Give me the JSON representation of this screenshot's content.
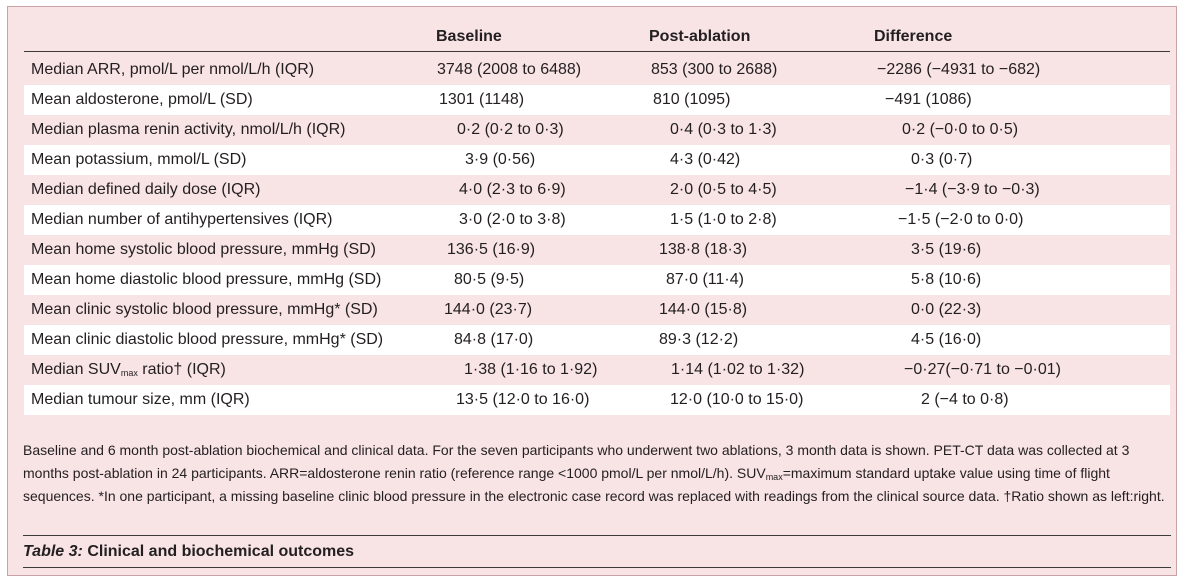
{
  "table": {
    "headers": {
      "baseline": "Baseline",
      "post": "Post-ablation",
      "difference": "Difference"
    },
    "rows": [
      {
        "label": "Median ARR, pmol/L per nmol/L/h (IQR)",
        "baseline": "3748 (2008 to 6488)",
        "post": "853 (300 to 2688)",
        "difference": "−2286 (−4931 to −682)"
      },
      {
        "label": "Mean aldosterone, pmol/L (SD)",
        "baseline": "1301 (1148)",
        "post": "810 (1095)",
        "difference": "−491 (1086)"
      },
      {
        "label": "Median plasma renin activity, nmol/L/h (IQR)",
        "baseline": "0·2 (0·2 to 0·3)",
        "post": "0·4 (0·3 to 1·3)",
        "difference": "0·2 (−0·0 to 0·5)"
      },
      {
        "label": "Mean potassium, mmol/L (SD)",
        "baseline": "3·9 (0·56)",
        "post": "4·3 (0·42)",
        "difference": "0·3 (0·7)"
      },
      {
        "label": "Median defined daily dose (IQR)",
        "baseline": "4·0 (2·3 to 6·9)",
        "post": "2·0 (0·5 to 4·5)",
        "difference": "−1·4 (−3·9 to −0·3)"
      },
      {
        "label": "Median number of antihypertensives (IQR)",
        "baseline": "3·0 (2·0 to 3·8)",
        "post": "1·5 (1·0 to 2·8)",
        "difference": "−1·5 (−2·0 to 0·0)"
      },
      {
        "label": "Mean home systolic blood pressure, mmHg (SD)",
        "baseline": "136·5 (16·9)",
        "post": "138·8 (18·3)",
        "difference": "3·5 (19·6)"
      },
      {
        "label": "Mean home diastolic blood pressure, mmHg (SD)",
        "baseline": "80·5 (9·5)",
        "post": "87·0 (11·4)",
        "difference": "5·8 (10·6)"
      },
      {
        "label": "Mean clinic systolic blood pressure, mmHg* (SD)",
        "baseline": "144·0 (23·7)",
        "post": "144·0 (15·8)",
        "difference": "0·0 (22·3)"
      },
      {
        "label": "Mean clinic diastolic blood pressure, mmHg* (SD)",
        "baseline": "84·8 (17·0)",
        "post": "89·3 (12·2)",
        "difference": "4·5 (16·0)"
      },
      {
        "label_pre": "Median SUV",
        "label_sub": "max",
        "label_post": " ratio† (IQR)",
        "baseline": "1·38 (1·16 to 1·92)",
        "post": "1·14 (1·02 to 1·32)",
        "difference": "−0·27(−0·71 to −0·01)"
      },
      {
        "label": "Median tumour size, mm (IQR)",
        "baseline": "13·5 (12·0 to 16·0)",
        "post": "12·0 (10·0 to 15·0)",
        "difference": "2 (−4 to 0·8)"
      }
    ]
  },
  "footnote": {
    "part1": "Baseline and 6 month post-ablation biochemical and clinical data. For the seven participants who underwent two ablations, 3 month data is shown. PET-CT data was collected at 3 months post-ablation in 24 participants. ARR=aldosterone renin ratio (reference range <1000 pmol/L per nmol/L/h). SUV",
    "sub": "max",
    "part2": "=maximum standard uptake value using time of flight sequences. *In one participant, a missing baseline clinic blood pressure in the electronic case record was replaced with readings from the clinical source data. †Ratio shown as left:right."
  },
  "caption": {
    "label": "Table 3:",
    "text": " Clinical and biochemical outcomes"
  },
  "colors": {
    "panel": "#f8e3e5",
    "stripe": "#ffffff",
    "rule": "#3a3a3a",
    "text": "#231f20"
  }
}
